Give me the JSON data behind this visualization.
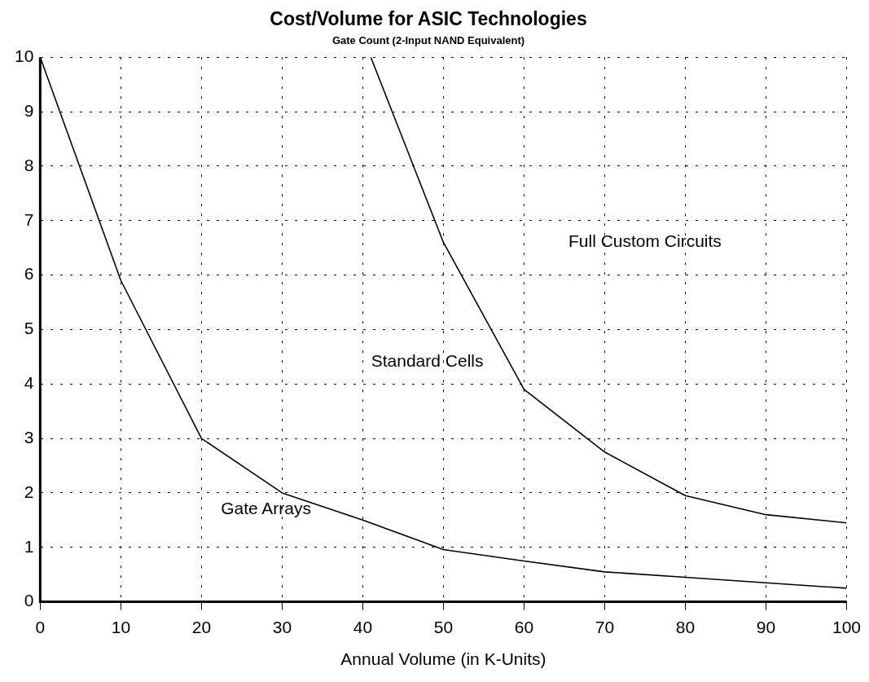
{
  "chart_data": {
    "type": "line",
    "title": "Cost/Volume for ASIC Technologies",
    "subtitle": "Gate Count (2-Input NAND Equivalent)",
    "xlabel": "Annual Volume (in K-Units)",
    "xlim": [
      0,
      100
    ],
    "xticks": [
      0,
      10,
      20,
      30,
      40,
      50,
      60,
      70,
      80,
      90,
      100
    ],
    "ylim": [
      0,
      10
    ],
    "yticks": [
      0,
      1,
      2,
      3,
      4,
      5,
      6,
      7,
      8,
      9,
      10
    ],
    "series": [
      {
        "color": "#000000",
        "x": [
          0,
          10,
          20,
          30,
          40,
          50,
          60,
          70,
          80,
          90,
          100
        ],
        "values": [
          10,
          5.9,
          3,
          2,
          1.5,
          0.96,
          0.75,
          0.55,
          0.45,
          0.35,
          0.25
        ]
      },
      {
        "color": "#000000",
        "x": [
          41,
          50,
          60,
          70,
          80,
          90,
          100
        ],
        "values": [
          10,
          6.6,
          3.9,
          2.75,
          1.95,
          1.6,
          1.45
        ]
      }
    ],
    "annotations": [
      "Gate Arrays",
      "Standard Cells",
      "Full Custom Circuits"
    ],
    "grid": true,
    "legend": false,
    "marker": "none",
    "line_style": "solid"
  }
}
